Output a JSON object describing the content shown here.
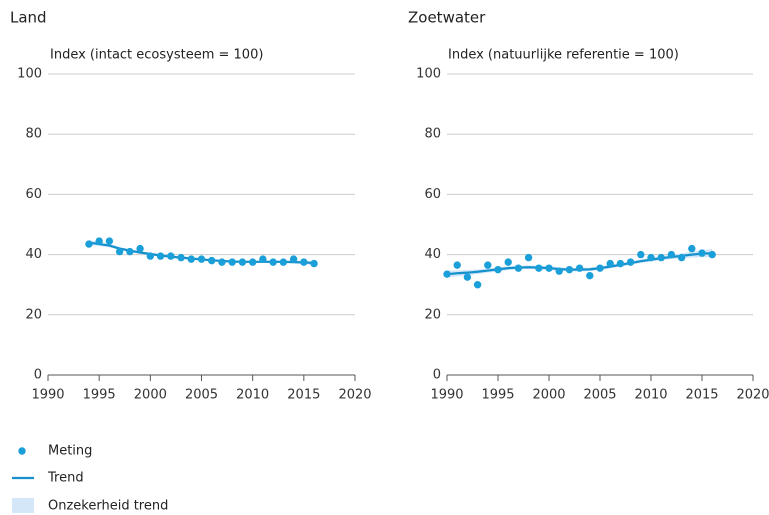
{
  "legend": [
    {
      "name": "Meting",
      "color": "#1a9fd9"
    },
    {
      "name": "Trend",
      "color": "#1590cc"
    },
    {
      "name": "Onzekerheid trend",
      "color": "#d3e7f8"
    }
  ],
  "chart_data": [
    {
      "type": "scatter",
      "title": "Land",
      "ylabel": "Index (intact ecosysteem = 100)",
      "x": [
        1994,
        1995,
        1996,
        1997,
        1998,
        1999,
        2000,
        2001,
        2002,
        2003,
        2004,
        2005,
        2006,
        2007,
        2008,
        2009,
        2010,
        2011,
        2012,
        2013,
        2014,
        2015,
        2016
      ],
      "values": [
        43.5,
        44.5,
        44.5,
        41,
        41,
        42,
        39.5,
        39.5,
        39.5,
        39,
        38.5,
        38.5,
        38,
        37.5,
        37.5,
        37.5,
        37.5,
        38.5,
        37.5,
        37.5,
        38.5,
        37.5,
        37
      ],
      "trend": [
        44,
        43.5,
        43,
        42,
        41.3,
        40.7,
        40.2,
        39.7,
        39.3,
        39,
        38.7,
        38.4,
        38.1,
        37.9,
        37.7,
        37.6,
        37.6,
        37.6,
        37.6,
        37.6,
        37.5,
        37.4,
        37.2
      ],
      "trend_margin": [
        0.8,
        0.7,
        0.6,
        0.5,
        0.5,
        0.4,
        0.4,
        0.4,
        0.4,
        0.4,
        0.4,
        0.4,
        0.4,
        0.4,
        0.4,
        0.4,
        0.4,
        0.4,
        0.4,
        0.4,
        0.5,
        0.6,
        0.7
      ],
      "xlim": [
        1990,
        2020
      ],
      "xticks": [
        1990,
        1995,
        2000,
        2005,
        2010,
        2015,
        2020
      ],
      "ylim": [
        0,
        100
      ],
      "yticks": [
        0,
        20,
        40,
        60,
        80,
        100
      ],
      "grid": true
    },
    {
      "type": "scatter",
      "title": "Zoetwater",
      "ylabel": "Index (natuurlijke referentie = 100)",
      "x": [
        1990,
        1991,
        1992,
        1993,
        1994,
        1995,
        1996,
        1997,
        1998,
        1999,
        2000,
        2001,
        2002,
        2003,
        2004,
        2005,
        2006,
        2007,
        2008,
        2009,
        2010,
        2011,
        2012,
        2013,
        2014,
        2015,
        2016
      ],
      "values": [
        33.5,
        36.5,
        32.5,
        30,
        36.5,
        35,
        37.5,
        35.5,
        39,
        35.5,
        35.5,
        34.5,
        35,
        35.5,
        33,
        35.5,
        37,
        37,
        37.5,
        40,
        39,
        39,
        40,
        39,
        42,
        40.5,
        40
      ],
      "trend": [
        33.5,
        33.8,
        34,
        34.3,
        34.7,
        35.1,
        35.5,
        35.7,
        35.8,
        35.7,
        35.5,
        35.2,
        35,
        35,
        35.1,
        35.5,
        36,
        36.6,
        37.2,
        37.8,
        38.3,
        38.8,
        39.2,
        39.6,
        40,
        40.3,
        40.5
      ],
      "trend_margin": [
        1.2,
        1,
        0.9,
        0.8,
        0.7,
        0.7,
        0.6,
        0.6,
        0.6,
        0.6,
        0.6,
        0.6,
        0.6,
        0.6,
        0.6,
        0.6,
        0.6,
        0.6,
        0.6,
        0.6,
        0.6,
        0.7,
        0.7,
        0.8,
        1,
        1.2,
        1.4
      ],
      "xlim": [
        1990,
        2020
      ],
      "xticks": [
        1990,
        1995,
        2000,
        2005,
        2010,
        2015,
        2020
      ],
      "ylim": [
        0,
        100
      ],
      "yticks": [
        0,
        20,
        40,
        60,
        80,
        100
      ],
      "grid": true
    }
  ]
}
